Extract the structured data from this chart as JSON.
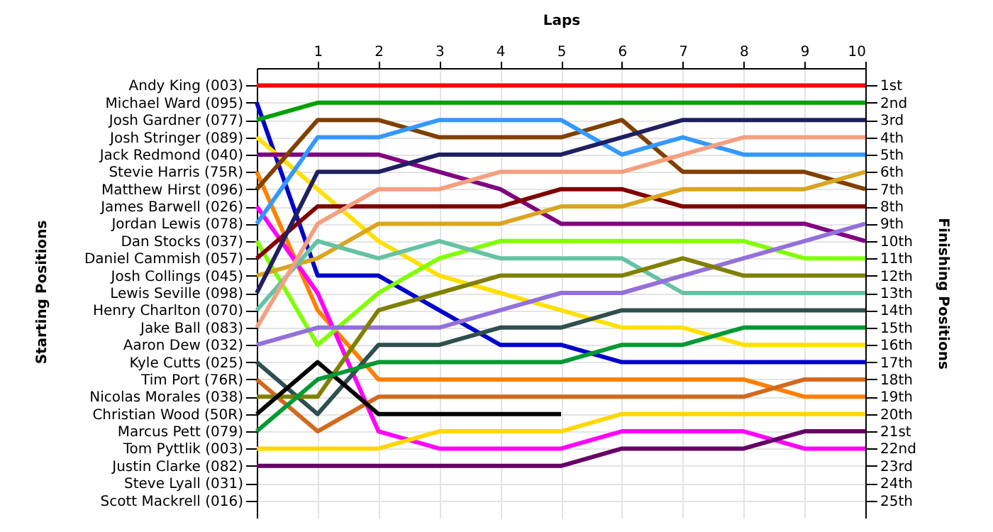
{
  "chart_data": {
    "type": "line",
    "xlabel": "Laps",
    "annotations": [
      "Starting Positions"
    ],
    "y2label": "Finishing Positions",
    "x": [
      0,
      1,
      2,
      3,
      4,
      5,
      6,
      7,
      8,
      9,
      10
    ],
    "xlim": [
      0,
      10
    ],
    "xticks": [
      1,
      2,
      3,
      4,
      5,
      6,
      7,
      8,
      9,
      10
    ],
    "y_categories": [
      "Andy King (003)",
      "Michael Ward (095)",
      "Josh Gardner (077)",
      "Josh Stringer (089)",
      "Jack Redmond (040)",
      "Stevie Harris (75R)",
      "Matthew Hirst (096)",
      "James Barwell (026)",
      "Jordan Lewis (078)",
      "Dan Stocks (037)",
      "Daniel Cammish (057)",
      "Josh Collings (045)",
      "Lewis Seville (098)",
      "Henry Charlton (070)",
      "Jake Ball (083)",
      "Aaron Dew (032)",
      "Kyle Cutts (025)",
      "Tim Port (76R)",
      "Nicolas Morales (038)",
      "Christian Wood (50R)",
      "Marcus Pett (079)",
      "Tom Pyttlik (003)",
      "Justin Clarke (082)",
      "Steve Lyall (031)",
      "Scott Mackrell (016)"
    ],
    "y2lim": [
      26,
      0
    ],
    "y2ticks": [
      {
        "value": 1,
        "label": "1st"
      },
      {
        "value": 2,
        "label": "2nd"
      },
      {
        "value": 3,
        "label": "3rd"
      },
      {
        "value": 4,
        "label": "4th"
      },
      {
        "value": 5,
        "label": "5th"
      },
      {
        "value": 6,
        "label": "6th"
      },
      {
        "value": 7,
        "label": "7th"
      },
      {
        "value": 8,
        "label": "8th"
      },
      {
        "value": 9,
        "label": "9th"
      },
      {
        "value": 10,
        "label": "10th"
      },
      {
        "value": 11,
        "label": "11th"
      },
      {
        "value": 12,
        "label": "12th"
      },
      {
        "value": 13,
        "label": "13th"
      },
      {
        "value": 14,
        "label": "14th"
      },
      {
        "value": 15,
        "label": "15th"
      },
      {
        "value": 16,
        "label": "16th"
      },
      {
        "value": 17,
        "label": "17th"
      },
      {
        "value": 18,
        "label": "18th"
      },
      {
        "value": 19,
        "label": "19th"
      },
      {
        "value": 20,
        "label": "20th"
      },
      {
        "value": 21,
        "label": "21st"
      },
      {
        "value": 22,
        "label": "22nd"
      },
      {
        "value": 23,
        "label": "23rd"
      },
      {
        "value": 24,
        "label": "24th"
      },
      {
        "value": 25,
        "label": "25th"
      }
    ],
    "grid": true,
    "series": [
      {
        "axis": "y2",
        "color": "#ff0000",
        "values": [
          1,
          1,
          1,
          1,
          1,
          1,
          1,
          1,
          1,
          1,
          1
        ]
      },
      {
        "axis": "y2",
        "color": "#0000cc",
        "values": [
          2,
          12,
          12,
          14,
          16,
          16,
          17,
          17,
          17,
          17,
          17
        ]
      },
      {
        "axis": "y2",
        "color": "#00a000",
        "values": [
          3,
          2,
          2,
          2,
          2,
          2,
          2,
          2,
          2,
          2,
          2
        ]
      },
      {
        "axis": "y2",
        "color": "#ffe000",
        "values": [
          4,
          7,
          10,
          12,
          13,
          14,
          15,
          15,
          16,
          16,
          16
        ]
      },
      {
        "axis": "y2",
        "color": "#800080",
        "values": [
          5,
          5,
          5,
          6,
          7,
          9,
          9,
          9,
          9,
          9,
          10
        ]
      },
      {
        "axis": "y2",
        "color": "#ff8000",
        "values": [
          6,
          14,
          18,
          18,
          18,
          18,
          18,
          18,
          18,
          19,
          19
        ]
      },
      {
        "axis": "y2",
        "color": "#804000",
        "values": [
          7,
          3,
          3,
          4,
          4,
          4,
          3,
          6,
          6,
          6,
          7
        ]
      },
      {
        "axis": "y2",
        "color": "#ff00ff",
        "values": [
          8,
          13,
          21,
          22,
          22,
          22,
          21,
          21,
          21,
          22,
          22
        ]
      },
      {
        "axis": "y2",
        "color": "#3399ff",
        "values": [
          9,
          4,
          4,
          3,
          3,
          3,
          5,
          4,
          5,
          5,
          5
        ]
      },
      {
        "axis": "y2",
        "color": "#80ff00",
        "values": [
          10,
          16,
          13,
          11,
          10,
          10,
          10,
          10,
          10,
          11,
          11
        ]
      },
      {
        "axis": "y2",
        "color": "#800000",
        "values": [
          11,
          8,
          8,
          8,
          8,
          7,
          7,
          8,
          8,
          8,
          8
        ]
      },
      {
        "axis": "y2",
        "color": "#daa520",
        "values": [
          12,
          11,
          9,
          9,
          9,
          8,
          8,
          7,
          7,
          7,
          6
        ]
      },
      {
        "axis": "y2",
        "color": "#202060",
        "values": [
          13,
          6,
          6,
          5,
          5,
          5,
          4,
          3,
          3,
          3,
          3
        ]
      },
      {
        "axis": "y2",
        "color": "#66c2a5",
        "values": [
          14,
          10,
          11,
          10,
          11,
          11,
          11,
          13,
          13,
          13,
          13
        ]
      },
      {
        "axis": "y2",
        "color": "#f4a080",
        "values": [
          15,
          9,
          7,
          7,
          6,
          6,
          6,
          5,
          4,
          4,
          4
        ]
      },
      {
        "axis": "y2",
        "color": "#9370db",
        "values": [
          16,
          15,
          15,
          15,
          14,
          13,
          13,
          12,
          11,
          10,
          9
        ]
      },
      {
        "axis": "y2",
        "color": "#2f4f4f",
        "values": [
          17,
          20,
          16,
          16,
          15,
          15,
          14,
          14,
          14,
          14,
          14
        ]
      },
      {
        "axis": "y2",
        "color": "#d2691e",
        "values": [
          18,
          21,
          19,
          19,
          19,
          19,
          19,
          19,
          19,
          18,
          18
        ]
      },
      {
        "axis": "y2",
        "color": "#808000",
        "values": [
          19,
          19,
          14,
          13,
          12,
          12,
          12,
          11,
          12,
          12,
          12
        ]
      },
      {
        "axis": "y2",
        "color": "#000000",
        "values": [
          20,
          17,
          20,
          20,
          20,
          20,
          null,
          null,
          null,
          null,
          null
        ]
      },
      {
        "axis": "y2",
        "color": "#009933",
        "values": [
          21,
          18,
          17,
          17,
          17,
          17,
          16,
          16,
          15,
          15,
          15
        ]
      },
      {
        "axis": "y2",
        "color": "#ffd700",
        "values": [
          22,
          22,
          22,
          21,
          21,
          21,
          20,
          20,
          20,
          20,
          20
        ]
      },
      {
        "axis": "y2",
        "color": "#660066",
        "values": [
          23,
          23,
          23,
          23,
          23,
          23,
          22,
          22,
          22,
          21,
          21
        ]
      }
    ]
  }
}
